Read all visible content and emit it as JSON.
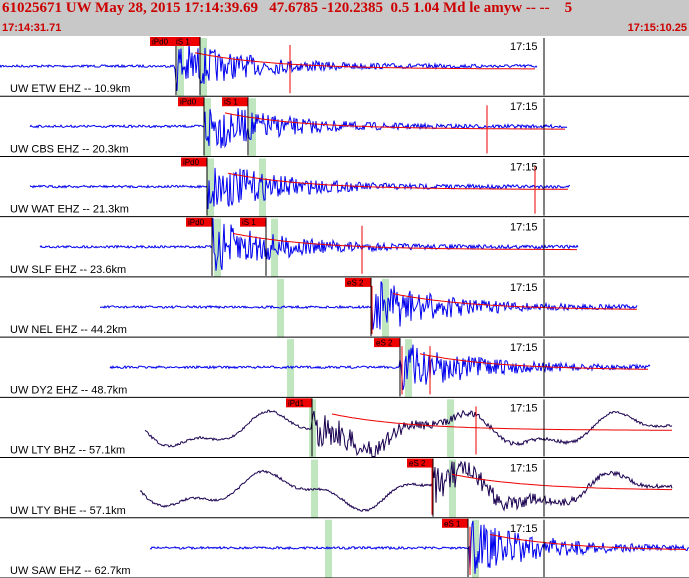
{
  "header": {
    "title": "61025671 UW May 28, 2015 17:14:39.69   47.6785 -120.2385  0.5 1.04 Md le amyw -- --    5",
    "start_time": "17:14:31.71",
    "end_time": "17:15:10.25"
  },
  "time_marker": "17:15",
  "colors": {
    "accent": "#cc0000",
    "header_bg": "#c8c8c8",
    "trace_short": "#0000ee",
    "trace_long": "#1a0050",
    "pick_box": "#ee0000",
    "window": "#bfe6bf",
    "fit": "#000000"
  },
  "traces": [
    {
      "label": "UW ETW EHZ -- 10.9km",
      "long_period": false,
      "signal_start": 0.3,
      "onset": 175,
      "picks": [
        {
          "text": "iPd0",
          "x": 150
        },
        {
          "text": "iS 1",
          "x": 174
        }
      ],
      "green": [
        180,
        203
      ],
      "redlines": [
        290
      ],
      "coda_end": 537,
      "bg_start": 0
    },
    {
      "label": "UW CBS EHZ -- 20.3km",
      "long_period": false,
      "signal_start": 0.3,
      "onset": 205,
      "picks": [
        {
          "text": "iPd0",
          "x": 178
        },
        {
          "text": "iS 1",
          "x": 222
        }
      ],
      "green": [
        207,
        252
      ],
      "redlines": [
        487
      ],
      "coda_end": 567,
      "bg_start": 30
    },
    {
      "label": "UW WAT EHZ -- 21.3km",
      "long_period": false,
      "signal_start": 0.3,
      "onset": 208,
      "picks": [
        {
          "text": "iPd0",
          "x": 181
        }
      ],
      "green": [
        210,
        262
      ],
      "redlines": [
        535
      ],
      "coda_end": 570,
      "bg_start": 30
    },
    {
      "label": "UW SLF EHZ -- 23.6km",
      "long_period": false,
      "signal_start": 0.3,
      "onset": 213,
      "picks": [
        {
          "text": "iPd0",
          "x": 186
        },
        {
          "text": "iS 1",
          "x": 240
        }
      ],
      "green": [
        217,
        274
      ],
      "redlines": [
        362
      ],
      "coda_end": 578,
      "bg_start": 40
    },
    {
      "label": "UW NEL EHZ -- 44.2km",
      "long_period": false,
      "signal_start": 0.3,
      "onset": 373,
      "picks": [
        {
          "text": "eS 2",
          "x": 345
        }
      ],
      "green": [
        280,
        385
      ],
      "redlines": [
        372
      ],
      "coda_end": 637,
      "bg_start": 100
    },
    {
      "label": "UW DY2 EHZ -- 48.7km",
      "long_period": false,
      "signal_start": 0.3,
      "onset": 400,
      "picks": [
        {
          "text": "eS 2",
          "x": 374
        }
      ],
      "green": [
        290,
        408
      ],
      "redlines": [
        402,
        430
      ],
      "coda_end": 650,
      "bg_start": 110
    },
    {
      "label": "UW LTY BHZ -- 57.1km",
      "long_period": true,
      "signal_start": 0.3,
      "onset": 312,
      "picks": [
        {
          "text": "iPd1",
          "x": 286
        }
      ],
      "green": [
        312,
        450
      ],
      "redlines": [
        312,
        476
      ],
      "coda_end": 672,
      "bg_start": 145
    },
    {
      "label": "UW LTY BHE -- 57.1km",
      "long_period": true,
      "signal_start": 0.3,
      "onset": 432,
      "picks": [
        {
          "text": "eS 2",
          "x": 407
        }
      ],
      "green": [
        314,
        452
      ],
      "redlines": [
        432
      ],
      "coda_end": 672,
      "bg_start": 140
    },
    {
      "label": "UW SAW EHZ -- 62.7km",
      "long_period": false,
      "signal_start": 0.3,
      "onset": 470,
      "picks": [
        {
          "text": "eS 1",
          "x": 442
        }
      ],
      "green": [
        328,
        475
      ],
      "redlines": [
        470
      ],
      "coda_end": 689,
      "bg_start": 150
    }
  ]
}
